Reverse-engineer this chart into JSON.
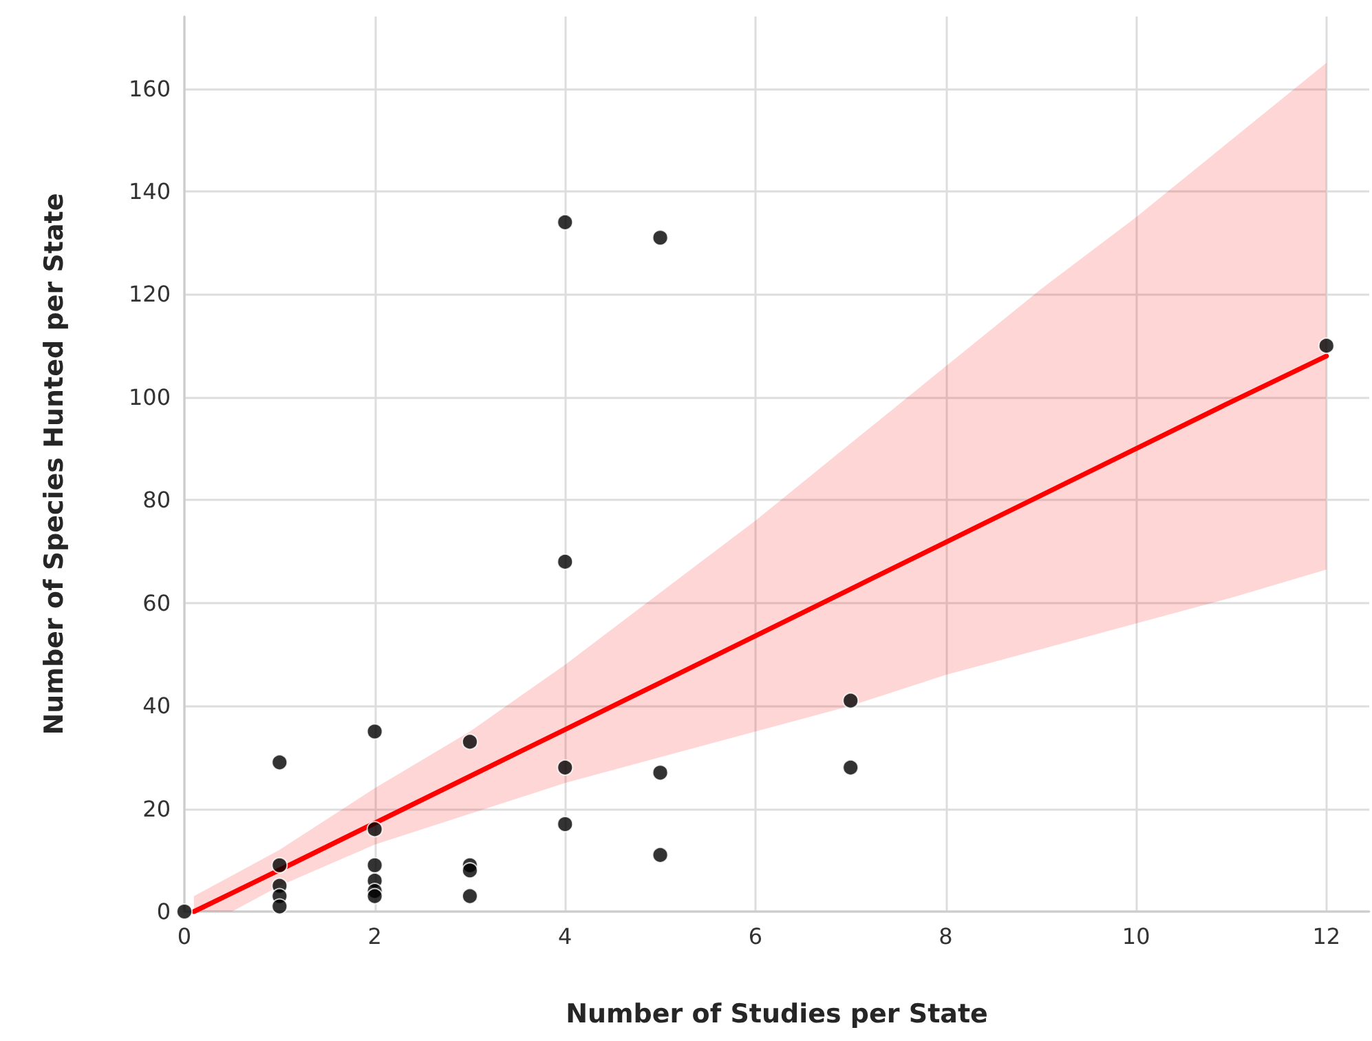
{
  "chart_data": {
    "type": "scatter",
    "xlabel": "Number of Studies per State",
    "ylabel": "Number of Species Hunted per State",
    "xlim": [
      0,
      12.45
    ],
    "ylim": [
      0,
      174
    ],
    "xticks": [
      0,
      2,
      4,
      6,
      8,
      10,
      12
    ],
    "yticks": [
      0,
      20,
      40,
      60,
      80,
      100,
      120,
      140,
      160
    ],
    "grid": true,
    "series": [
      {
        "type": "scatter",
        "color": "#000000",
        "marker": "circle",
        "x": [
          0,
          1,
          1,
          1,
          1,
          1,
          2,
          2,
          2,
          2,
          2,
          2,
          3,
          3,
          3,
          3,
          4,
          4,
          4,
          4,
          5,
          5,
          5,
          7,
          7,
          12
        ],
        "values": [
          0,
          29,
          9,
          5,
          3,
          1,
          35,
          16,
          9,
          6,
          4,
          3,
          33,
          9,
          8,
          3,
          134,
          68,
          28,
          17,
          131,
          27,
          11,
          41,
          28,
          110
        ]
      },
      {
        "type": "line",
        "color": "#ff0000",
        "line_style": "solid",
        "marker": "none",
        "x": [
          0.1,
          0.5,
          1,
          2,
          3,
          4,
          5,
          6,
          7,
          8,
          9,
          10,
          11,
          12
        ],
        "values": [
          0,
          3.6,
          8.1,
          17.2,
          26.3,
          35.4,
          44.5,
          53.6,
          62.7,
          71.8,
          80.9,
          90,
          99.1,
          108
        ],
        "lower": [
          0,
          0,
          5,
          13,
          19,
          25,
          30,
          35,
          40,
          46,
          51,
          56,
          61,
          66.5
        ],
        "upper": [
          3,
          7,
          12,
          24,
          35,
          48,
          62,
          76,
          91,
          106,
          121,
          135,
          150,
          165
        ]
      }
    ]
  }
}
